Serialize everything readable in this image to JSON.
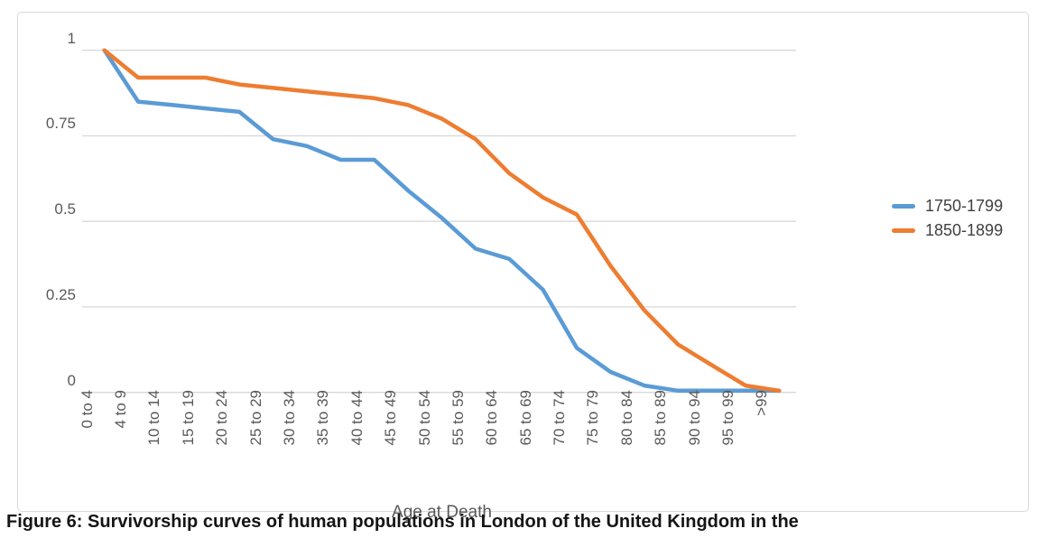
{
  "chart_data": {
    "type": "line",
    "title": "",
    "xlabel": "Age at Death",
    "ylabel": "",
    "ylim": [
      0,
      1
    ],
    "y_ticks": [
      0,
      0.25,
      0.5,
      0.75,
      1
    ],
    "y_tick_labels": [
      "0",
      "0.25",
      "0.5",
      "0.75",
      "1"
    ],
    "grid": true,
    "legend_position": "right",
    "categories": [
      "0 to 4",
      "4 to 9",
      "10 to 14",
      "15 to 19",
      "20 to 24",
      "25 to 29",
      "30 to 34",
      "35 to 39",
      "40 to 44",
      "45 to 49",
      "50 to 54",
      "55 to 59",
      "60 to 64",
      "65 to 69",
      "70 to 74",
      "75 to 79",
      "80 to 84",
      "85 to 89",
      "90 to 94",
      "95 to 99",
      ">99"
    ],
    "series": [
      {
        "name": "1750-1799",
        "color": "#5B9BD5",
        "values": [
          1.0,
          0.85,
          0.84,
          0.83,
          0.82,
          0.74,
          0.72,
          0.68,
          0.68,
          0.59,
          0.51,
          0.42,
          0.39,
          0.3,
          0.13,
          0.06,
          0.02,
          0.005,
          0.005,
          0.005,
          0.005
        ]
      },
      {
        "name": "1850-1899",
        "color": "#ED7D31",
        "values": [
          1.0,
          0.92,
          0.92,
          0.92,
          0.9,
          0.89,
          0.88,
          0.87,
          0.86,
          0.84,
          0.8,
          0.74,
          0.64,
          0.57,
          0.52,
          0.37,
          0.24,
          0.14,
          0.08,
          0.02,
          0.005
        ]
      }
    ]
  },
  "caption": "Figure 6: Survivorship curves of human populations in London of the United Kingdom in the",
  "colors": {
    "gridline": "#d9d9d9",
    "axis_text": "#595959",
    "frame_border": "#d9d9d9"
  }
}
